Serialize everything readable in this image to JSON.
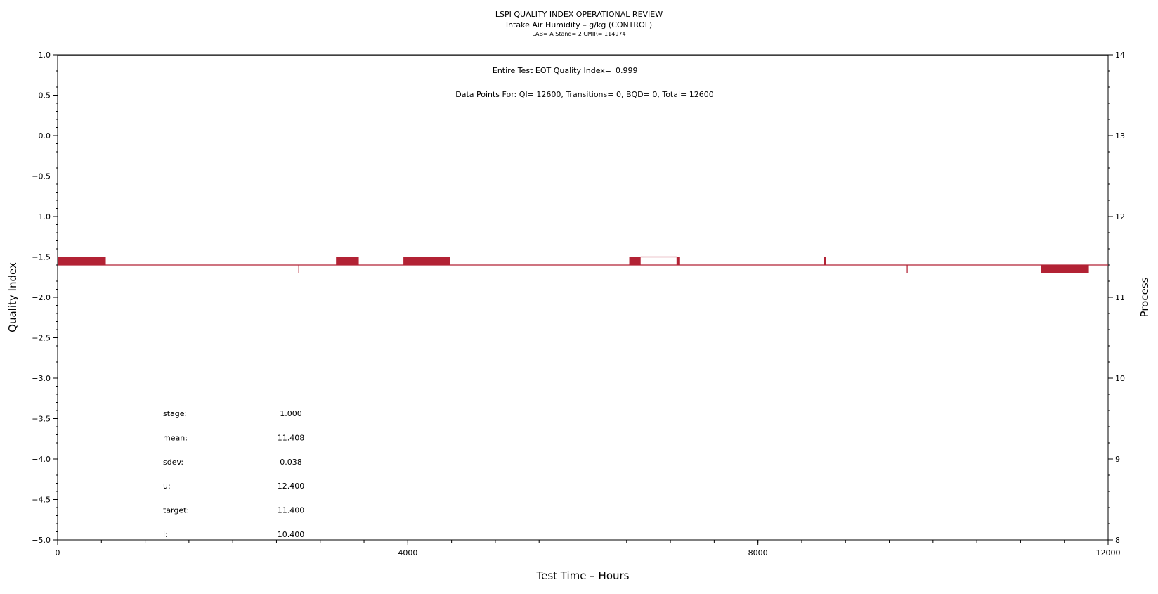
{
  "chart_data": {
    "type": "line",
    "title": "LSPI QUALITY INDEX OPERATIONAL REVIEW",
    "subtitle": "Intake Air Humidity – g/kg (CONTROL)",
    "subtitle2": "LAB= A Stand= 2 CMIR= 114974",
    "xlabel": "Test Time – Hours",
    "ylabel_left": "Quality Index",
    "ylabel_right": "Process",
    "xlim": [
      0,
      12000
    ],
    "ylim_left": [
      -5.0,
      1.0
    ],
    "ylim_right": [
      8,
      14
    ],
    "x_ticks": [
      0,
      4000,
      8000,
      12000
    ],
    "y_left_ticks": [
      1.0,
      0.5,
      0.0,
      -0.5,
      -1.0,
      -1.5,
      -2.0,
      -2.5,
      -3.0,
      -3.5,
      -4.0,
      -4.5,
      -5.0
    ],
    "y_left_tick_labels": [
      "1.0",
      "0.5",
      "0.0",
      "−0.5",
      "−1.0",
      "−1.5",
      "−2.0",
      "−2.5",
      "−3.0",
      "−3.5",
      "−4.0",
      "−4.5",
      "−5.0"
    ],
    "y_right_ticks": [
      8,
      9,
      10,
      11,
      12,
      13,
      14
    ],
    "series": [
      {
        "role": "quality-index",
        "color": "#000000",
        "x": [
          0,
          12000
        ],
        "values": [
          0.999,
          0.999
        ]
      },
      {
        "role": "process",
        "color": "#b22234",
        "baseline": 11.4,
        "segments": [
          {
            "x": [
              0,
              550
            ],
            "values": [
              11.4,
              11.5
            ]
          },
          {
            "x": [
              2750,
              2760
            ],
            "values": [
              11.4,
              11.3
            ]
          },
          {
            "x": [
              3180,
              3440
            ],
            "values": [
              11.4,
              11.5
            ]
          },
          {
            "x": [
              3950,
              4480
            ],
            "values": [
              11.4,
              11.5
            ]
          },
          {
            "x": [
              6530,
              6660
            ],
            "values": [
              11.4,
              11.5
            ]
          },
          {
            "x": [
              6660,
              7070
            ],
            "values": [
              11.5,
              11.5
            ]
          },
          {
            "x": [
              7070,
              7110
            ],
            "values": [
              11.4,
              11.5
            ]
          },
          {
            "x": [
              8750,
              8780
            ],
            "values": [
              11.4,
              11.5
            ]
          },
          {
            "x": [
              9700,
              9710
            ],
            "values": [
              11.4,
              11.3
            ]
          },
          {
            "x": [
              11230,
              11780
            ],
            "values": [
              11.4,
              11.3
            ]
          }
        ]
      }
    ],
    "grid": false,
    "annotations": {
      "eot": {
        "label": "Entire Test EOT Quality Index=",
        "value": "0.999"
      },
      "points": "Data Points For: QI= 12600, Transitions=     0, BQD=     0, Total= 12600"
    },
    "stats": [
      {
        "label": "stage:",
        "value": "1.000"
      },
      {
        "label": "mean:",
        "value": "11.408"
      },
      {
        "label": "sdev:",
        "value": "0.038"
      },
      {
        "label": "u:",
        "value": "12.400"
      },
      {
        "label": "target:",
        "value": "11.400"
      },
      {
        "label": "l:",
        "value": "10.400"
      }
    ]
  }
}
